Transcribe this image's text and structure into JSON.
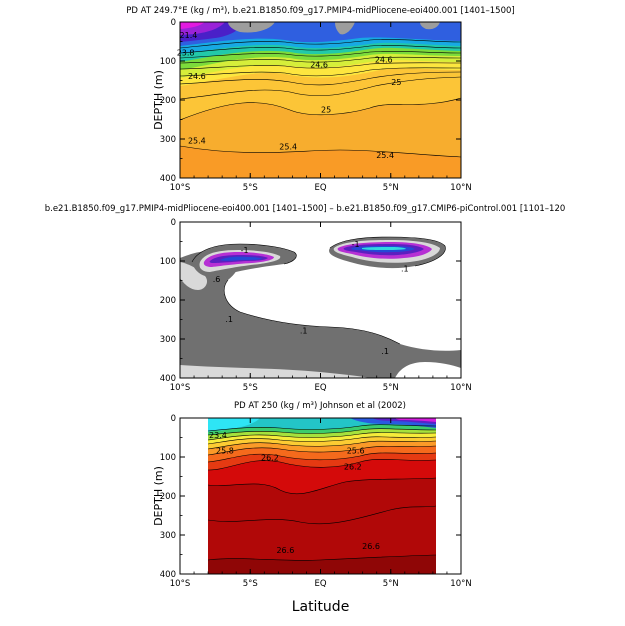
{
  "chart_data": [
    {
      "type": "contour",
      "title": "PD AT 249.7°E (kg / m³), b.e21.B1850.f09_g17.PMIP4-midPliocene-eoi400.001 [1401–1500]",
      "ylabel": "DEPTH (m)",
      "xlabel": "",
      "xlim": [
        -10,
        10
      ],
      "ylim": [
        400,
        0
      ],
      "xticks": [
        "10°S",
        "5°S",
        "EQ",
        "5°N",
        "10°N"
      ],
      "yticks": [
        "0",
        "100",
        "200",
        "300",
        "400"
      ],
      "contour_labels": [
        {
          "text": "21.4",
          "x": -9.4,
          "y": 35
        },
        {
          "text": "23.8",
          "x": -9.6,
          "y": 80
        },
        {
          "text": "24.6",
          "x": -8.8,
          "y": 140
        },
        {
          "text": "24.6",
          "x": -0.1,
          "y": 110
        },
        {
          "text": "24.6",
          "x": 4.5,
          "y": 98
        },
        {
          "text": "25",
          "x": 0.4,
          "y": 225
        },
        {
          "text": "25",
          "x": 5.4,
          "y": 155
        },
        {
          "text": "25.4",
          "x": -8.8,
          "y": 305
        },
        {
          "text": "25.4",
          "x": -2.3,
          "y": 320
        },
        {
          "text": "25.4",
          "x": 4.6,
          "y": 342
        }
      ]
    },
    {
      "type": "contour",
      "title": "b.e21.B1850.f09_g17.PMIP4-midPliocene-eoi400.001 [1401–1500] – b.e21.B1850.f09_g17.CMIP6-piControl.001 [1101–120",
      "ylabel": "",
      "xlabel": "",
      "xlim": [
        -10,
        10
      ],
      "ylim": [
        400,
        0
      ],
      "xticks": [
        "10°S",
        "5°S",
        "EQ",
        "5°N",
        "10°N"
      ],
      "yticks": [
        "0",
        "100",
        "200",
        "300",
        "400"
      ],
      "contour_labels": [
        {
          "text": "-1",
          "x": -5.4,
          "y": 73
        },
        {
          "text": "-1",
          "x": 2.5,
          "y": 58
        },
        {
          "text": ".1",
          "x": 6.0,
          "y": 120
        },
        {
          "text": ".6",
          "x": -7.4,
          "y": 148
        },
        {
          "text": ".1",
          "x": -6.5,
          "y": 250
        },
        {
          "text": ".1",
          "x": -1.2,
          "y": 280
        },
        {
          "text": ".1",
          "x": 4.6,
          "y": 332
        }
      ]
    },
    {
      "type": "contour",
      "title": "PD AT 250 (kg / m³) Johnson et al (2002)",
      "ylabel": "DEPTH (m)",
      "xlabel": "Latitude",
      "xlim": [
        -10,
        10
      ],
      "ylim": [
        400,
        0
      ],
      "xticks": [
        "10°S",
        "5°S",
        "EQ",
        "5°N",
        "10°N"
      ],
      "yticks": [
        "0",
        "100",
        "200",
        "300",
        "400"
      ],
      "contour_labels": [
        {
          "text": "23.4",
          "x": -7.3,
          "y": 45
        },
        {
          "text": "25.8",
          "x": -6.8,
          "y": 85
        },
        {
          "text": "26.2",
          "x": -3.6,
          "y": 102
        },
        {
          "text": "26.2",
          "x": 2.3,
          "y": 125
        },
        {
          "text": "25.6",
          "x": 2.5,
          "y": 85
        },
        {
          "text": "26.6",
          "x": -2.5,
          "y": 340
        },
        {
          "text": "26.6",
          "x": 3.6,
          "y": 330
        }
      ]
    }
  ]
}
